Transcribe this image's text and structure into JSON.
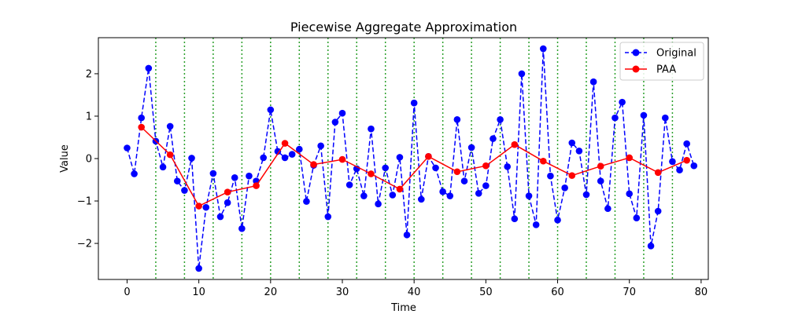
{
  "chart_data": {
    "type": "line",
    "title": "Piecewise Aggregate Approximation",
    "xlabel": "Time",
    "ylabel": "Value",
    "xlim": [
      -4,
      81
    ],
    "ylim": [
      -2.85,
      2.85
    ],
    "xticks": [
      0,
      10,
      20,
      30,
      40,
      50,
      60,
      70,
      80
    ],
    "yticks": [
      -2,
      -1,
      0,
      1,
      2
    ],
    "segment_boundaries": [
      4,
      8,
      12,
      16,
      20,
      24,
      28,
      32,
      36,
      40,
      44,
      48,
      52,
      56,
      60,
      64,
      68,
      72,
      76
    ],
    "legend_position": "top-right",
    "colors": {
      "original": "#0000ff",
      "paa": "#ff0000",
      "boundaries": "#2ca02c"
    },
    "series": [
      {
        "name": "Original",
        "style": "dashed-with-markers",
        "x": [
          0,
          1,
          2,
          3,
          4,
          5,
          6,
          7,
          8,
          9,
          10,
          11,
          12,
          13,
          14,
          15,
          16,
          17,
          18,
          19,
          20,
          21,
          22,
          23,
          24,
          25,
          26,
          27,
          28,
          29,
          30,
          31,
          32,
          33,
          34,
          35,
          36,
          37,
          38,
          39,
          40,
          41,
          42,
          43,
          44,
          45,
          46,
          47,
          48,
          49,
          50,
          51,
          52,
          53,
          54,
          55,
          56,
          57,
          58,
          59,
          60,
          61,
          62,
          63,
          64,
          65,
          66,
          67,
          68,
          69,
          70,
          71,
          72,
          73,
          74,
          75,
          76,
          77,
          78,
          79
        ],
        "values": [
          0.25,
          -0.36,
          0.96,
          2.13,
          0.41,
          -0.2,
          0.76,
          -0.53,
          -0.75,
          0.01,
          -2.59,
          -1.15,
          -0.35,
          -1.37,
          -1.04,
          -0.45,
          -1.65,
          -0.41,
          -0.53,
          0.02,
          1.15,
          0.17,
          0.02,
          0.1,
          0.22,
          -1.01,
          -0.16,
          0.3,
          -1.37,
          0.86,
          1.07,
          -0.62,
          -0.24,
          -0.88,
          0.7,
          -1.07,
          -0.22,
          -0.86,
          0.03,
          -1.8,
          1.31,
          -0.96,
          0.05,
          -0.22,
          -0.78,
          -0.88,
          0.92,
          -0.53,
          0.26,
          -0.82,
          -0.64,
          0.47,
          0.92,
          -0.19,
          -1.42,
          2.0,
          -0.88,
          -1.56,
          2.59,
          -0.41,
          -1.45,
          -0.69,
          0.37,
          0.18,
          -0.85,
          1.81,
          -0.53,
          -1.18,
          0.96,
          1.33,
          -0.83,
          -1.4,
          1.02,
          -2.06,
          -1.24,
          0.96,
          -0.07,
          -0.27,
          0.35,
          -0.17
        ]
      },
      {
        "name": "PAA",
        "style": "solid-with-markers",
        "x": [
          2,
          6,
          10,
          14,
          18,
          22,
          26,
          30,
          34,
          38,
          42,
          46,
          50,
          54,
          58,
          62,
          66,
          70,
          74,
          78
        ],
        "values": [
          0.74,
          0.09,
          -1.12,
          -0.79,
          -0.64,
          0.36,
          -0.14,
          -0.02,
          -0.36,
          -0.72,
          0.05,
          -0.31,
          -0.17,
          0.33,
          -0.06,
          -0.4,
          -0.18,
          0.02,
          -0.33,
          -0.04
        ]
      }
    ]
  }
}
